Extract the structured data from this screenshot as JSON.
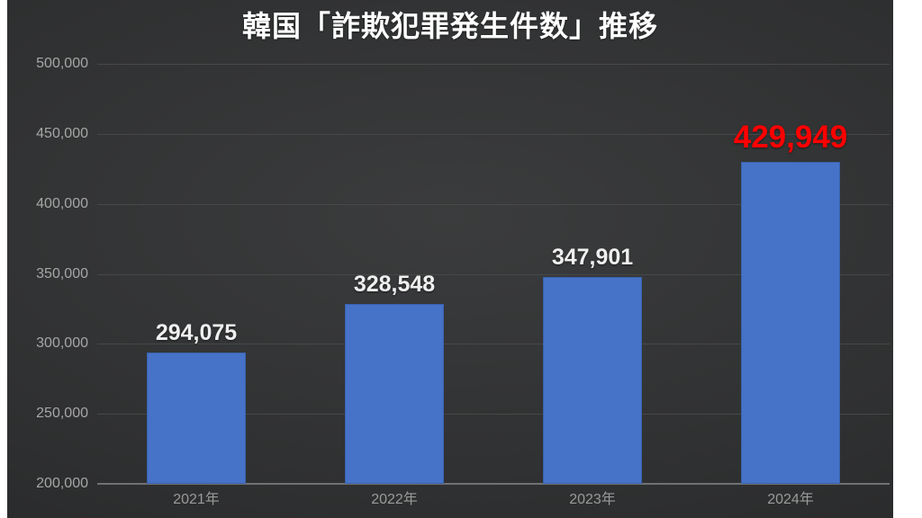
{
  "chart_data": {
    "type": "bar",
    "title": "韓国「詐欺犯罪発生件数」推移",
    "categories": [
      "2021年",
      "2022年",
      "2023年",
      "2024年"
    ],
    "values": [
      294075,
      328548,
      347901,
      429949
    ],
    "value_labels": [
      "294,075",
      "328,548",
      "347,901",
      "429,949"
    ],
    "highlight_index": 3,
    "xlabel": "",
    "ylabel": "",
    "ylim": [
      200000,
      500000
    ],
    "ytick_step": 50000,
    "ytick_labels": [
      "200,000",
      "250,000",
      "300,000",
      "350,000",
      "400,000",
      "450,000",
      "500,000"
    ],
    "grid": true,
    "legend": null,
    "colors": {
      "bar_fill": "#4673c8",
      "bar_border": "#3a61ad",
      "value_label": "#efefef",
      "highlight_value_label": "#ff0000",
      "title_text": "#ffffff",
      "axis_tick_text": "#a6a6a6",
      "gridline": "#474849",
      "axis_line": "#707172",
      "panel_background": "#2e2f30",
      "page_margin": "#ffffff"
    }
  }
}
